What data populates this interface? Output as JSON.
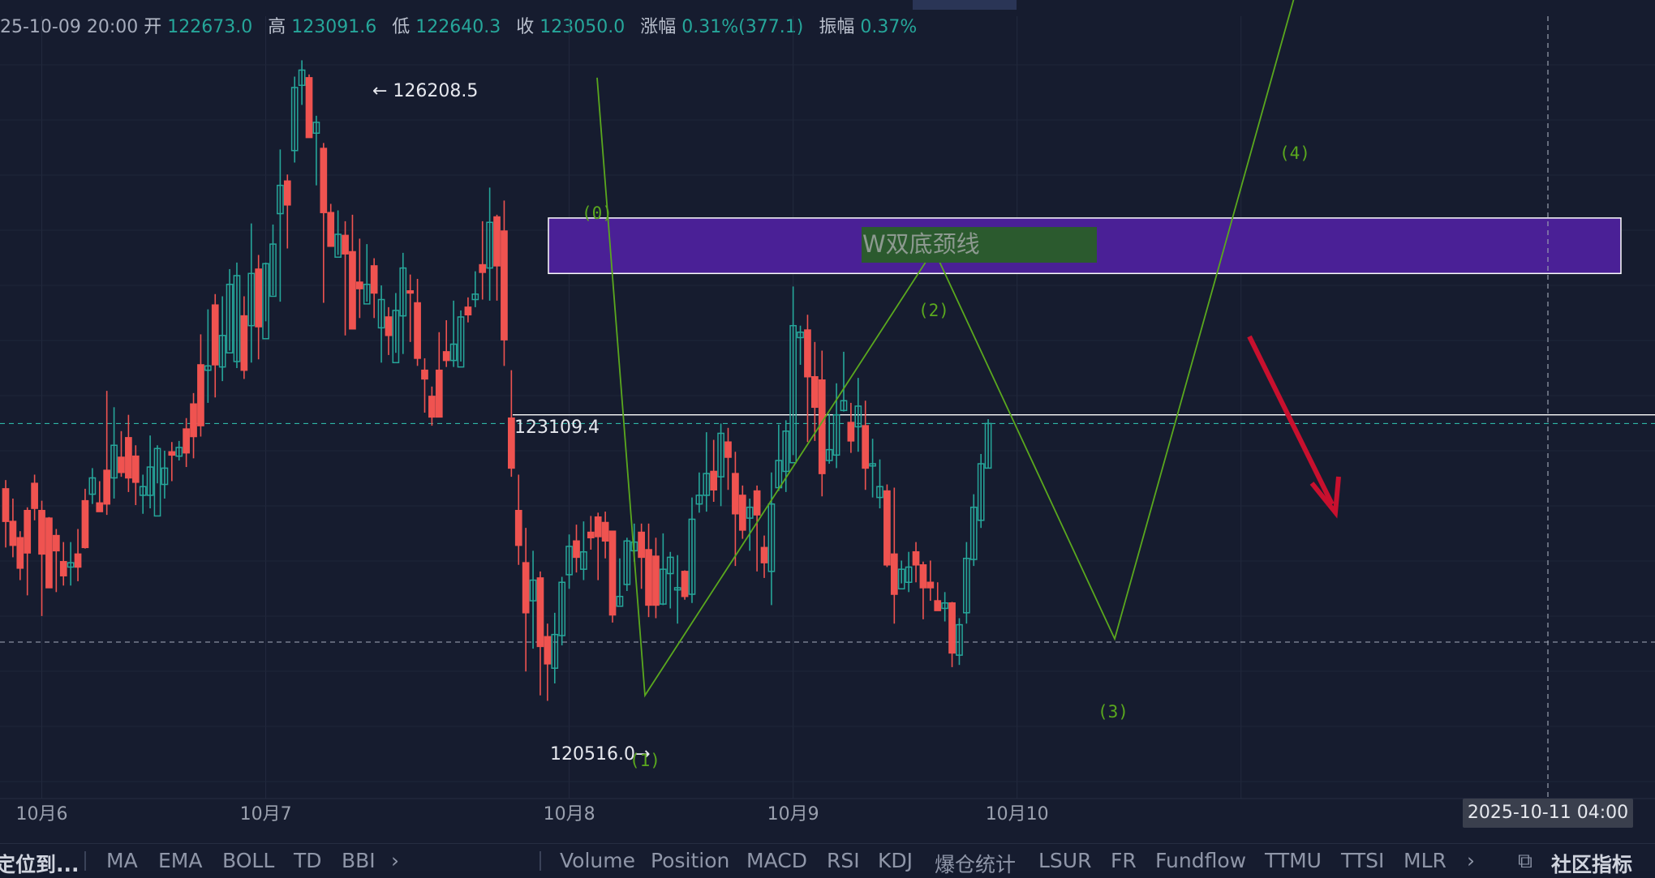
{
  "header": {
    "datetime": "25-10-09 20:00",
    "open_label": "开",
    "open": "122673.0",
    "high_label": "高",
    "high": "123091.6",
    "low_label": "低",
    "low": "122640.3",
    "close_label": "收",
    "close": "123050.0",
    "change_label": "涨幅",
    "change": "0.31%(377.1)",
    "amplitude_label": "振幅",
    "amplitude": "0.37%"
  },
  "crosshair": {
    "time_label": "2025-10-11 04:00"
  },
  "annotations": {
    "high_marker": "← 126208.5",
    "low_marker": "120516.0→",
    "last_low_label": "123109.4",
    "neckline_label": "W双底颈线",
    "wave_labels": [
      "(0)",
      "(1)",
      "(2)",
      "(3)",
      "(4)"
    ]
  },
  "bottom": {
    "left_label": "定位到...",
    "main_indicators": [
      "MA",
      "EMA",
      "BOLL",
      "TD",
      "BBI"
    ],
    "sub_indicators": [
      "Volume",
      "Position",
      "MACD",
      "RSI",
      "KDJ",
      "爆仓统计",
      "LSUR",
      "FR",
      "Fundflow",
      "TTMU",
      "TTSI",
      "MLR"
    ],
    "community_label": "社区指标",
    "more_icon": "chevron-right-icon",
    "edit_icon": "external-edit-icon"
  },
  "colors": {
    "up": "#26a69a",
    "down": "#ef5350",
    "pattern": "#5aa81e",
    "zone": "#4a2096",
    "label_box": "#2b5a2e",
    "arrow": "#c8102e",
    "background": "#161c2f"
  },
  "chart_data": {
    "type": "candlestick",
    "x_ticks": [
      "10月6",
      "10月7",
      "10月8",
      "10月9",
      "10月10"
    ],
    "ylim": [
      120000,
      127200
    ],
    "grid": true,
    "candles": [
      [
        122450,
        122150,
        122530,
        121910
      ],
      [
        122150,
        121930,
        122360,
        121820
      ],
      [
        122000,
        121720,
        122060,
        121610
      ],
      [
        122250,
        121860,
        122280,
        121470
      ],
      [
        122500,
        122270,
        122580,
        122160
      ],
      [
        122250,
        121850,
        122340,
        121280
      ],
      [
        122180,
        121540,
        122190,
        121700
      ],
      [
        122020,
        121880,
        122080,
        121500
      ],
      [
        121780,
        121650,
        121960,
        121560
      ],
      [
        121730,
        121770,
        121960,
        121560
      ],
      [
        121850,
        121730,
        122080,
        121600
      ],
      [
        122340,
        121910,
        122450,
        121900
      ],
      [
        122400,
        122550,
        122640,
        122310
      ],
      [
        122320,
        122240,
        122520,
        122320
      ],
      [
        122620,
        122310,
        123350,
        122210
      ],
      [
        122550,
        122850,
        123200,
        122360
      ],
      [
        122740,
        122600,
        122980,
        122560
      ],
      [
        122920,
        122550,
        123130,
        122420
      ],
      [
        122750,
        122510,
        122850,
        122300
      ],
      [
        122390,
        122470,
        122580,
        122220
      ],
      [
        122390,
        122650,
        122940,
        122270
      ],
      [
        122200,
        122820,
        122850,
        122500
      ],
      [
        122490,
        122640,
        122800,
        122360
      ],
      [
        122790,
        122760,
        122880,
        122520
      ],
      [
        122750,
        122830,
        122890,
        122710
      ],
      [
        123000,
        122780,
        123100,
        122650
      ],
      [
        123230,
        122930,
        123330,
        122730
      ],
      [
        123590,
        123030,
        123870,
        122930
      ],
      [
        123540,
        123580,
        124100,
        123240
      ],
      [
        124140,
        123590,
        124240,
        123290
      ],
      [
        123570,
        123860,
        124220,
        123440
      ],
      [
        123700,
        124330,
        124470,
        123720
      ],
      [
        123620,
        124410,
        124530,
        123560
      ],
      [
        124040,
        123540,
        124220,
        123460
      ],
      [
        123950,
        124430,
        124890,
        123610
      ],
      [
        124470,
        123940,
        124600,
        123640
      ],
      [
        123830,
        124520,
        124530,
        123990
      ],
      [
        124220,
        124700,
        124880,
        124230
      ],
      [
        124980,
        125240,
        125570,
        124170
      ],
      [
        125280,
        125060,
        125340,
        124660
      ],
      [
        125560,
        126140,
        126240,
        125450
      ],
      [
        126160,
        126300,
        126390,
        125980
      ],
      [
        126230,
        125680,
        126260,
        125840
      ],
      [
        125720,
        125820,
        125880,
        125240
      ],
      [
        125580,
        124990,
        125630,
        124160
      ],
      [
        124990,
        124680,
        125070,
        124790
      ],
      [
        124580,
        124790,
        125010,
        124600
      ],
      [
        124780,
        124610,
        124910,
        123860
      ],
      [
        124630,
        123920,
        124970,
        123980
      ],
      [
        124350,
        124290,
        124750,
        124020
      ],
      [
        124150,
        124330,
        124700,
        124170
      ],
      [
        124500,
        124250,
        124570,
        124020
      ],
      [
        123930,
        124190,
        124320,
        123610
      ],
      [
        124030,
        123860,
        124120,
        123680
      ],
      [
        123610,
        124090,
        124250,
        123700
      ],
      [
        124040,
        124480,
        124620,
        123690
      ],
      [
        124270,
        124250,
        124420,
        123800
      ],
      [
        124160,
        123650,
        124380,
        123580
      ],
      [
        123540,
        123460,
        123650,
        123150
      ],
      [
        123300,
        123110,
        123390,
        123030
      ],
      [
        123540,
        123110,
        123890,
        123270
      ],
      [
        123710,
        123630,
        124000,
        123570
      ],
      [
        123630,
        123780,
        124180,
        123570
      ],
      [
        123570,
        124030,
        124090,
        123620
      ],
      [
        124120,
        124050,
        124210,
        123980
      ],
      [
        124190,
        124240,
        124450,
        124120
      ],
      [
        124510,
        124440,
        124910,
        124190
      ],
      [
        124480,
        124900,
        125220,
        124180
      ],
      [
        124950,
        124500,
        124970,
        124180
      ],
      [
        124820,
        123820,
        125100,
        123580
      ],
      [
        123100,
        122640,
        123540,
        122560
      ],
      [
        122250,
        121930,
        122580,
        121750
      ],
      [
        121770,
        121310,
        122090,
        120770
      ],
      [
        121420,
        121610,
        121880,
        120980
      ],
      [
        121630,
        121000,
        121690,
        120550
      ],
      [
        121090,
        120840,
        121210,
        120500
      ],
      [
        120800,
        121110,
        121310,
        120660
      ],
      [
        121100,
        121590,
        121640,
        121010
      ],
      [
        121660,
        121920,
        122030,
        121530
      ],
      [
        121970,
        121820,
        122120,
        121680
      ],
      [
        121710,
        121870,
        122150,
        121610
      ],
      [
        122050,
        122000,
        122200,
        121890
      ],
      [
        122190,
        122010,
        122230,
        121610
      ],
      [
        122140,
        121970,
        122240,
        121810
      ],
      [
        122060,
        121290,
        122060,
        121220
      ],
      [
        121370,
        121460,
        121810,
        121380
      ],
      [
        121570,
        121970,
        122000,
        121510
      ],
      [
        121880,
        121960,
        122130,
        121780
      ],
      [
        122050,
        121820,
        122130,
        121530
      ],
      [
        121890,
        121380,
        122130,
        121270
      ],
      [
        121830,
        121380,
        122000,
        121260
      ],
      [
        121390,
        121710,
        122040,
        121380
      ],
      [
        121670,
        121820,
        121870,
        121350
      ],
      [
        121520,
        121540,
        121840,
        121210
      ],
      [
        121690,
        121460,
        121700,
        121430
      ],
      [
        121480,
        122170,
        122370,
        121400
      ],
      [
        122310,
        122390,
        122600,
        122230
      ],
      [
        122390,
        122590,
        122970,
        122240
      ],
      [
        122610,
        122440,
        122900,
        122330
      ],
      [
        122560,
        122960,
        123050,
        122290
      ],
      [
        122880,
        122740,
        123010,
        122440
      ],
      [
        122590,
        122220,
        122790,
        121740
      ],
      [
        122390,
        122070,
        122480,
        121990
      ],
      [
        122180,
        122280,
        122360,
        121880
      ],
      [
        122430,
        122210,
        122480,
        121690
      ],
      [
        121910,
        121770,
        122020,
        121630
      ],
      [
        121690,
        122310,
        122600,
        121380
      ],
      [
        122460,
        122710,
        123040,
        122430
      ],
      [
        122610,
        122980,
        123080,
        122420
      ],
      [
        122690,
        123950,
        124310,
        122760
      ],
      [
        123840,
        123890,
        123950,
        123590
      ],
      [
        123910,
        123480,
        124050,
        122880
      ],
      [
        123480,
        123200,
        123800,
        122890
      ],
      [
        123450,
        122590,
        123720,
        122380
      ],
      [
        122710,
        122810,
        123140,
        122680
      ],
      [
        122760,
        123130,
        123420,
        122640
      ],
      [
        123170,
        123260,
        123710,
        123160
      ],
      [
        123060,
        122890,
        123240,
        122780
      ],
      [
        123020,
        123210,
        123470,
        122790
      ],
      [
        123030,
        122640,
        123260,
        122440
      ],
      [
        122660,
        122680,
        122910,
        122370
      ],
      [
        122370,
        122470,
        122720,
        122270
      ],
      [
        122430,
        121750,
        122490,
        121730
      ],
      [
        121850,
        121480,
        122460,
        121210
      ],
      [
        121530,
        121710,
        121790,
        121580
      ],
      [
        121590,
        121730,
        121870,
        121500
      ],
      [
        121870,
        121750,
        121960,
        121590
      ],
      [
        121750,
        121540,
        121780,
        121250
      ],
      [
        121590,
        121540,
        121790,
        121420
      ],
      [
        121420,
        121330,
        121590,
        121370
      ],
      [
        121350,
        121400,
        121500,
        121230
      ],
      [
        121400,
        120940,
        121410,
        120810
      ],
      [
        120920,
        121200,
        121260,
        120830
      ],
      [
        121310,
        121810,
        121960,
        121210
      ],
      [
        121800,
        122280,
        122400,
        121740
      ],
      [
        122160,
        122680,
        122770,
        122090
      ],
      [
        122640,
        123050,
        123090,
        122640
      ]
    ],
    "levels": {
      "neckline_upper": 124940,
      "neckline_lower": 124430,
      "white_line": 123130,
      "dashed_current": 123050,
      "dashed_low": 121040
    },
    "pattern_points": [
      [
        126230,
        124350
      ],
      [
        120550,
        120940
      ],
      [
        124650,
        124610
      ],
      [
        121070,
        121040
      ],
      [
        127040,
        127020
      ]
    ],
    "high": 126208.5,
    "low": 120516.0,
    "label_price": 123109.4
  }
}
